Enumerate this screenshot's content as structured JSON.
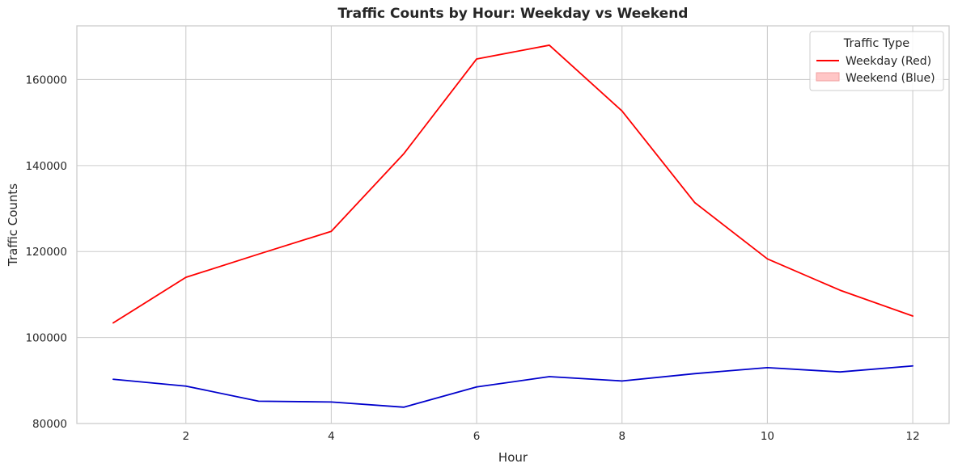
{
  "chart_data": {
    "type": "line",
    "title": "Traffic Counts by Hour: Weekday vs Weekend",
    "xlabel": "Hour",
    "ylabel": "Traffic Counts",
    "xlim": [
      0.5,
      12.5
    ],
    "ylim": [
      80000,
      172500
    ],
    "xticks": [
      2,
      4,
      6,
      8,
      10,
      12
    ],
    "yticks": [
      80000,
      100000,
      120000,
      140000,
      160000
    ],
    "grid": true,
    "x": [
      1,
      2,
      3,
      4,
      5,
      6,
      7,
      8,
      9,
      10,
      11,
      12
    ],
    "series": [
      {
        "name": "Weekday (Red)",
        "color": "#ff0000",
        "values": [
          103400,
          114000,
          119400,
          124700,
          142800,
          164800,
          168000,
          152700,
          131400,
          118300,
          111000,
          105000
        ]
      },
      {
        "name": "Weekend (Blue)",
        "color": "#0000cc",
        "values": [
          90300,
          88700,
          85200,
          85000,
          83800,
          88500,
          90900,
          89900,
          91600,
          93000,
          92000,
          93400
        ]
      }
    ],
    "legend": {
      "title": "Traffic Type",
      "placement": "top-right",
      "entries": [
        {
          "label": "Weekday (Red)",
          "marker": "line",
          "color": "#ff0000"
        },
        {
          "label": "Weekend (Blue)",
          "marker": "patch",
          "color": "#ffc6c6",
          "edge": "#f2a0a0"
        }
      ]
    }
  }
}
